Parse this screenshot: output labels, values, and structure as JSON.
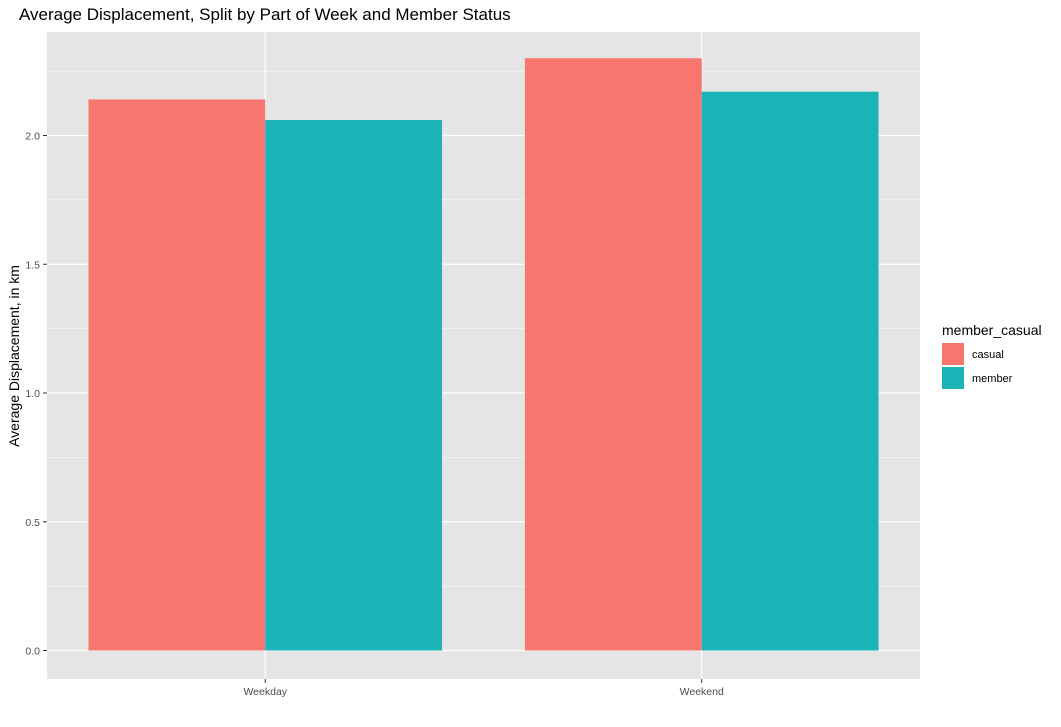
{
  "chart_data": {
    "type": "bar",
    "title": "Average Displacement, Split by Part of Week and Member Status",
    "xlabel": "",
    "ylabel": "Average Displacement, in km",
    "categories": [
      "Weekday",
      "Weekend"
    ],
    "series": [
      {
        "name": "casual",
        "color": "#F8766D",
        "values": [
          2.14,
          2.3
        ]
      },
      {
        "name": "member",
        "color": "#1AB3B8",
        "values": [
          2.06,
          2.17
        ]
      }
    ],
    "ylim": [
      0,
      2.3
    ],
    "yticks": [
      0.0,
      0.5,
      1.0,
      1.5,
      2.0
    ],
    "ytick_labels": [
      "0.0",
      "0.5",
      "1.0",
      "1.5",
      "2.0"
    ],
    "legend": {
      "title": "member_casual",
      "position": "right"
    },
    "grid": true,
    "panel_background": "#E5E5E5",
    "grid_color": "#FFFFFF"
  }
}
